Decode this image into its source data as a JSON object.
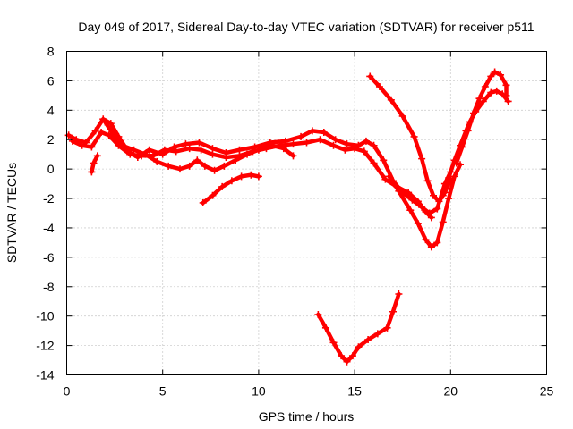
{
  "chart_data": {
    "type": "scatter",
    "title": "Day 049 of 2017, Sidereal Day-to-day VTEC variation (SDTVAR) for receiver p511",
    "xlabel": "GPS time / hours",
    "ylabel": "SDTVAR / TECUs",
    "xlim": [
      0,
      25
    ],
    "ylim": [
      -14,
      8
    ],
    "xticks": [
      "0",
      "5",
      "10",
      "15",
      "20",
      "25"
    ],
    "yticks": [
      "-14",
      "-12",
      "-10",
      "-8",
      "-6",
      "-4",
      "-2",
      "0",
      "2",
      "4",
      "6",
      "8"
    ],
    "grid": true,
    "color": "#ff0000",
    "series": [
      {
        "points": [
          [
            0.1,
            2.3
          ],
          [
            0.5,
            2.0
          ],
          [
            1.0,
            1.8
          ],
          [
            1.5,
            2.6
          ],
          [
            1.9,
            3.4
          ],
          [
            2.3,
            3.1
          ],
          [
            2.7,
            2.2
          ],
          [
            3.2,
            1.2
          ],
          [
            3.7,
            0.8
          ],
          [
            4.3,
            1.3
          ],
          [
            5.0,
            1.0
          ],
          [
            5.6,
            1.5
          ],
          [
            6.2,
            1.7
          ],
          [
            6.9,
            1.8
          ],
          [
            7.6,
            1.4
          ],
          [
            8.3,
            1.1
          ],
          [
            9.0,
            1.3
          ],
          [
            9.8,
            1.5
          ],
          [
            10.6,
            1.8
          ],
          [
            11.4,
            1.9
          ],
          [
            12.2,
            2.2
          ],
          [
            12.8,
            2.6
          ],
          [
            13.4,
            2.5
          ],
          [
            14.0,
            2.0
          ],
          [
            14.6,
            1.7
          ],
          [
            15.2,
            1.6
          ],
          [
            15.6,
            1.9
          ],
          [
            16.0,
            1.6
          ],
          [
            16.5,
            0.6
          ],
          [
            17.0,
            -0.8
          ],
          [
            17.5,
            -1.6
          ],
          [
            18.0,
            -2.1
          ],
          [
            18.5,
            -2.6
          ],
          [
            18.9,
            -3.0
          ],
          [
            19.3,
            -2.7
          ],
          [
            19.7,
            -1.0
          ],
          [
            20.0,
            -0.2
          ]
        ]
      },
      {
        "points": [
          [
            0.3,
            1.9
          ],
          [
            0.8,
            1.6
          ],
          [
            1.3,
            1.5
          ],
          [
            1.8,
            2.5
          ],
          [
            2.2,
            2.3
          ],
          [
            2.7,
            1.6
          ],
          [
            3.3,
            1.0
          ],
          [
            3.9,
            0.9
          ],
          [
            4.5,
            0.9
          ],
          [
            5.1,
            1.3
          ],
          [
            5.7,
            1.2
          ],
          [
            6.4,
            1.4
          ],
          [
            7.0,
            1.3
          ],
          [
            7.6,
            1.0
          ],
          [
            8.3,
            0.8
          ],
          [
            9.0,
            0.9
          ],
          [
            9.7,
            1.2
          ],
          [
            10.4,
            1.4
          ],
          [
            11.1,
            1.6
          ],
          [
            11.8,
            1.7
          ],
          [
            12.5,
            1.8
          ],
          [
            13.2,
            2.0
          ],
          [
            13.9,
            1.6
          ],
          [
            14.5,
            1.3
          ],
          [
            15.0,
            1.4
          ],
          [
            15.5,
            1.2
          ],
          [
            16.0,
            0.4
          ],
          [
            16.6,
            -0.7
          ],
          [
            17.2,
            -1.2
          ],
          [
            17.8,
            -1.6
          ],
          [
            18.3,
            -2.2
          ],
          [
            18.7,
            -2.9
          ],
          [
            19.0,
            -3.3
          ]
        ]
      },
      {
        "points": [
          [
            2.0,
            3.2
          ],
          [
            2.4,
            2.4
          ],
          [
            2.9,
            1.6
          ],
          [
            3.5,
            1.3
          ],
          [
            4.1,
            1.0
          ],
          [
            4.7,
            0.5
          ],
          [
            5.3,
            0.2
          ],
          [
            5.9,
            0.0
          ],
          [
            6.4,
            0.2
          ],
          [
            6.8,
            0.6
          ],
          [
            7.2,
            0.2
          ],
          [
            7.7,
            -0.1
          ],
          [
            8.2,
            0.2
          ],
          [
            8.8,
            0.6
          ],
          [
            9.4,
            1.0
          ],
          [
            10.0,
            1.3
          ],
          [
            10.7,
            1.6
          ],
          [
            11.3,
            1.4
          ],
          [
            11.8,
            0.9
          ]
        ]
      },
      {
        "points": [
          [
            7.1,
            -2.3
          ],
          [
            7.6,
            -1.8
          ],
          [
            8.1,
            -1.2
          ],
          [
            8.6,
            -0.8
          ],
          [
            9.1,
            -0.5
          ],
          [
            9.6,
            -0.4
          ],
          [
            10.0,
            -0.5
          ]
        ]
      },
      {
        "points": [
          [
            1.3,
            -0.2
          ],
          [
            1.4,
            0.4
          ],
          [
            1.6,
            0.9
          ]
        ]
      },
      {
        "points": [
          [
            15.8,
            6.3
          ],
          [
            16.3,
            5.6
          ],
          [
            16.9,
            4.7
          ],
          [
            17.5,
            3.6
          ],
          [
            18.1,
            2.2
          ],
          [
            18.5,
            0.7
          ],
          [
            18.8,
            -0.8
          ],
          [
            19.1,
            -1.8
          ],
          [
            19.4,
            -2.2
          ],
          [
            19.7,
            -1.6
          ],
          [
            20.0,
            -0.7
          ]
        ]
      },
      {
        "points": [
          [
            16.8,
            -0.5
          ],
          [
            17.3,
            -1.5
          ],
          [
            17.9,
            -2.8
          ],
          [
            18.3,
            -3.7
          ],
          [
            18.7,
            -4.8
          ],
          [
            19.0,
            -5.3
          ],
          [
            19.3,
            -5.0
          ],
          [
            19.6,
            -3.6
          ],
          [
            19.9,
            -2.0
          ],
          [
            20.2,
            -0.5
          ],
          [
            20.5,
            0.3
          ]
        ]
      },
      {
        "points": [
          [
            19.6,
            -1.8
          ],
          [
            19.9,
            -0.6
          ],
          [
            20.2,
            0.6
          ],
          [
            20.5,
            1.6
          ],
          [
            20.8,
            2.6
          ],
          [
            21.0,
            3.2
          ],
          [
            21.3,
            3.9
          ],
          [
            21.7,
            4.6
          ],
          [
            22.1,
            5.2
          ],
          [
            22.4,
            5.3
          ],
          [
            22.7,
            5.1
          ],
          [
            23.0,
            4.6
          ]
        ]
      },
      {
        "points": [
          [
            20.3,
            0.4
          ],
          [
            20.6,
            1.5
          ],
          [
            20.9,
            2.6
          ],
          [
            21.2,
            3.8
          ],
          [
            21.5,
            4.8
          ],
          [
            21.8,
            5.6
          ],
          [
            22.1,
            6.3
          ],
          [
            22.3,
            6.6
          ],
          [
            22.6,
            6.4
          ],
          [
            22.9,
            5.7
          ],
          [
            22.9,
            5.0
          ]
        ]
      },
      {
        "points": [
          [
            13.1,
            -9.9
          ],
          [
            13.5,
            -10.8
          ],
          [
            13.9,
            -11.8
          ],
          [
            14.3,
            -12.7
          ],
          [
            14.6,
            -13.1
          ],
          [
            14.9,
            -12.7
          ],
          [
            15.2,
            -12.1
          ],
          [
            15.7,
            -11.6
          ],
          [
            16.2,
            -11.2
          ],
          [
            16.7,
            -10.8
          ],
          [
            17.0,
            -9.7
          ],
          [
            17.3,
            -8.5
          ]
        ]
      }
    ]
  }
}
